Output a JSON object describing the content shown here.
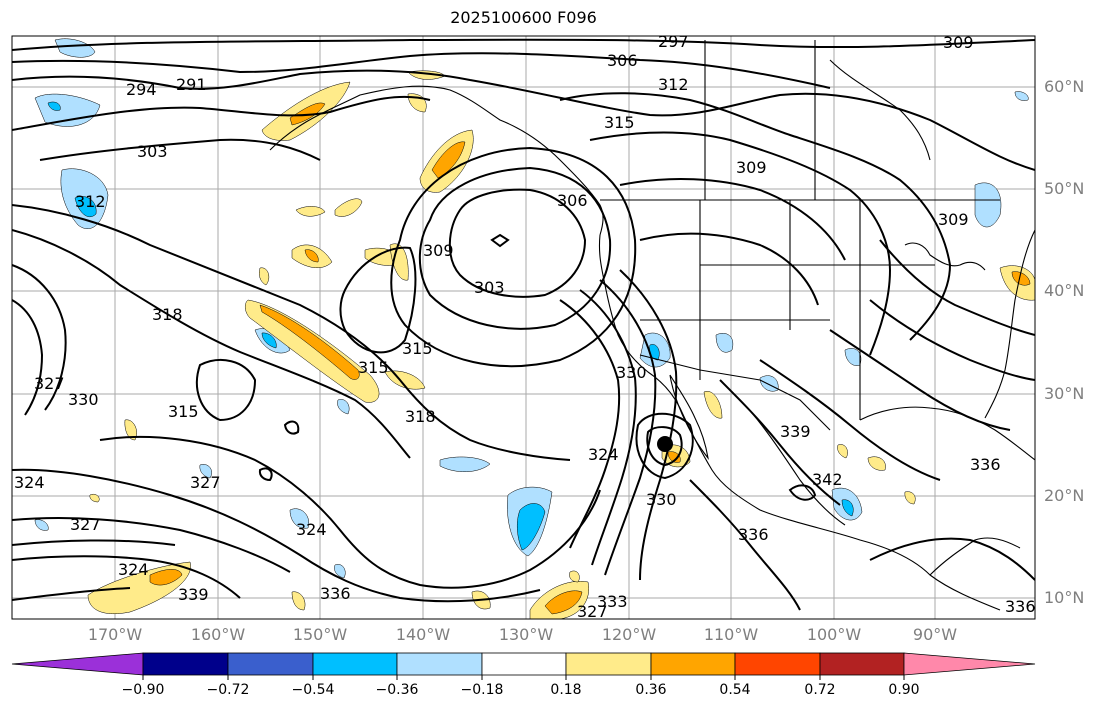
{
  "title": "2025100600 F096",
  "map": {
    "lat_labels": [
      "60°N",
      "50°N",
      "40°N",
      "30°N",
      "20°N",
      "10°N"
    ],
    "lon_labels": [
      "170°W",
      "160°W",
      "150°W",
      "140°W",
      "130°W",
      "120°W",
      "110°W",
      "100°W",
      "90°W"
    ],
    "contour_labels": [
      "297",
      "306",
      "312",
      "294",
      "291",
      "303",
      "315",
      "309",
      "312",
      "306",
      "309",
      "303",
      "318",
      "315",
      "327",
      "330",
      "315",
      "315",
      "318",
      "324",
      "327",
      "339",
      "324",
      "336",
      "324",
      "327",
      "324",
      "339",
      "336",
      "333",
      "327",
      "330",
      "330",
      "336",
      "342",
      "336",
      "309",
      "309"
    ],
    "storm_marker": "filled-circle",
    "coastline_color": "#000000",
    "grid_color": "#aaaaaa"
  },
  "colorbar": {
    "colors": [
      "#9b30d9",
      "#00008b",
      "#3a5fcd",
      "#00bfff",
      "#b0e0ff",
      "#ffffff",
      "#ffeb8a",
      "#ffa500",
      "#ff4500",
      "#b22222",
      "#ff88aa"
    ],
    "tick_labels": [
      "−0.90",
      "−0.72",
      "−0.54",
      "−0.36",
      "−0.18",
      "0.18",
      "0.36",
      "0.54",
      "0.72",
      "0.90"
    ]
  }
}
